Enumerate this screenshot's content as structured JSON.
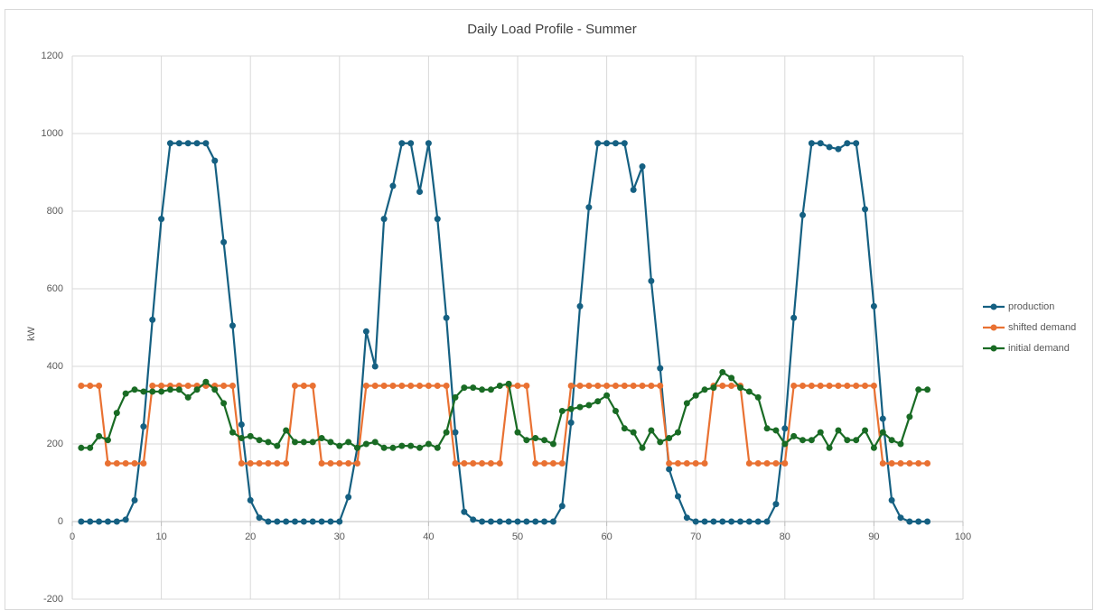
{
  "chart_data": {
    "type": "line",
    "title": "Daily Load Profile - Summer",
    "y_label": "kW",
    "x": [
      1,
      2,
      3,
      4,
      5,
      6,
      7,
      8,
      9,
      10,
      11,
      12,
      13,
      14,
      15,
      16,
      17,
      18,
      19,
      20,
      21,
      22,
      23,
      24,
      25,
      26,
      27,
      28,
      29,
      30,
      31,
      32,
      33,
      34,
      35,
      36,
      37,
      38,
      39,
      40,
      41,
      42,
      43,
      44,
      45,
      46,
      47,
      48,
      49,
      50,
      51,
      52,
      53,
      54,
      55,
      56,
      57,
      58,
      59,
      60,
      61,
      62,
      63,
      64,
      65,
      66,
      67,
      68,
      69,
      70,
      71,
      72,
      73,
      74,
      75,
      76,
      77,
      78,
      79,
      80,
      81,
      82,
      83,
      84,
      85,
      86,
      87,
      88,
      89,
      90,
      91,
      92,
      93,
      94,
      95,
      96
    ],
    "series": [
      {
        "name": "production",
        "color": "#156082",
        "values": [
          0,
          0,
          0,
          0,
          0,
          5,
          55,
          245,
          520,
          780,
          975,
          975,
          975,
          975,
          975,
          930,
          720,
          505,
          250,
          55,
          10,
          0,
          0,
          0,
          0,
          0,
          0,
          0,
          0,
          0,
          63,
          190,
          490,
          400,
          780,
          865,
          975,
          975,
          850,
          975,
          780,
          525,
          230,
          25,
          5,
          0,
          0,
          0,
          0,
          0,
          0,
          0,
          0,
          0,
          40,
          255,
          555,
          810,
          975,
          975,
          975,
          975,
          855,
          915,
          620,
          395,
          135,
          65,
          10,
          0,
          0,
          0,
          0,
          0,
          0,
          0,
          0,
          0,
          45,
          240,
          525,
          790,
          975,
          975,
          965,
          960,
          975,
          975,
          805,
          555,
          265,
          55,
          10,
          0,
          0,
          0
        ]
      },
      {
        "name": "shifted demand",
        "color": "#e97132",
        "values": [
          350,
          350,
          350,
          150,
          150,
          150,
          150,
          150,
          350,
          350,
          350,
          350,
          350,
          350,
          350,
          350,
          350,
          350,
          150,
          150,
          150,
          150,
          150,
          150,
          350,
          350,
          350,
          150,
          150,
          150,
          150,
          150,
          350,
          350,
          350,
          350,
          350,
          350,
          350,
          350,
          350,
          350,
          150,
          150,
          150,
          150,
          150,
          150,
          350,
          350,
          350,
          150,
          150,
          150,
          150,
          350,
          350,
          350,
          350,
          350,
          350,
          350,
          350,
          350,
          350,
          350,
          150,
          150,
          150,
          150,
          150,
          350,
          350,
          350,
          350,
          150,
          150,
          150,
          150,
          150,
          350,
          350,
          350,
          350,
          350,
          350,
          350,
          350,
          350,
          350,
          150,
          150,
          150,
          150,
          150,
          150
        ]
      },
      {
        "name": "initial demand",
        "color": "#196b24",
        "values": [
          190,
          190,
          220,
          210,
          280,
          330,
          340,
          335,
          335,
          335,
          340,
          340,
          320,
          340,
          360,
          340,
          305,
          230,
          215,
          220,
          210,
          205,
          195,
          235,
          205,
          205,
          205,
          215,
          205,
          195,
          205,
          190,
          200,
          205,
          190,
          190,
          195,
          195,
          190,
          200,
          190,
          230,
          320,
          345,
          345,
          340,
          340,
          350,
          355,
          230,
          210,
          215,
          210,
          200,
          285,
          290,
          295,
          300,
          310,
          325,
          285,
          240,
          230,
          190,
          235,
          205,
          215,
          230,
          305,
          325,
          340,
          345,
          385,
          370,
          345,
          335,
          320,
          240,
          235,
          200,
          220,
          210,
          210,
          230,
          190,
          235,
          210,
          210,
          235,
          190,
          230,
          210,
          200,
          270,
          340,
          340
        ]
      }
    ],
    "xlim": [
      0,
      100
    ],
    "xticks": [
      0,
      10,
      20,
      30,
      40,
      50,
      60,
      70,
      80,
      90,
      100
    ],
    "ylim": [
      -200,
      1200
    ],
    "yticks": [
      -200,
      0,
      200,
      400,
      600,
      800,
      1000,
      1200
    ],
    "grid": true,
    "legend": "right"
  }
}
